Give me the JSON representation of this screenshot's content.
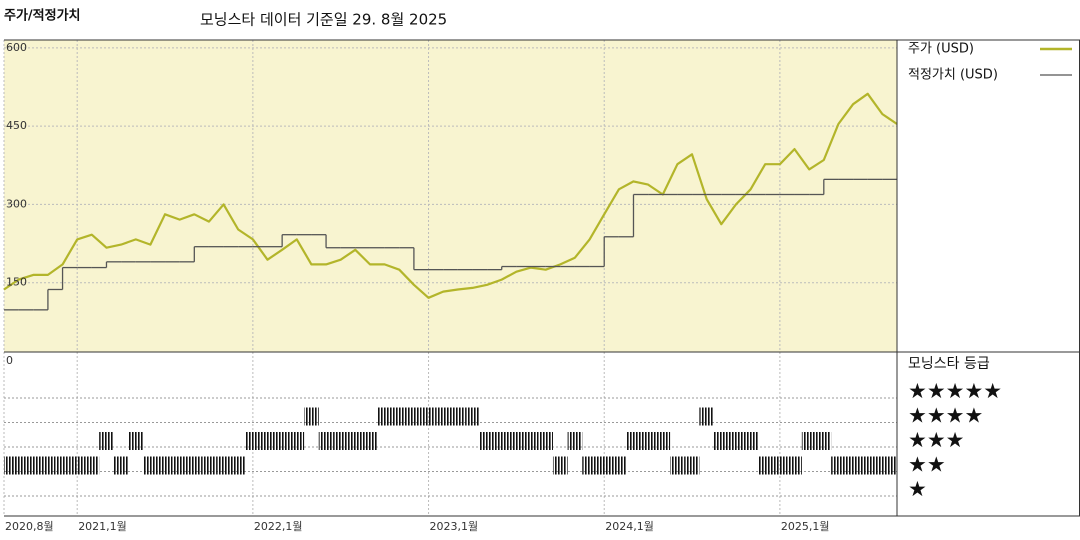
{
  "chart_data": {
    "type": "line",
    "title": "주가/적정가치",
    "subtitle": "모닝스타 데이터 기준일 29. 8월 2025",
    "x": [
      "2020-08",
      "2020-09",
      "2020-10",
      "2020-11",
      "2020-12",
      "2021-01",
      "2021-02",
      "2021-03",
      "2021-04",
      "2021-05",
      "2021-06",
      "2021-07",
      "2021-08",
      "2021-09",
      "2021-10",
      "2021-11",
      "2021-12",
      "2022-01",
      "2022-02",
      "2022-03",
      "2022-04",
      "2022-05",
      "2022-06",
      "2022-07",
      "2022-08",
      "2022-09",
      "2022-10",
      "2022-11",
      "2022-12",
      "2023-01",
      "2023-02",
      "2023-03",
      "2023-04",
      "2023-05",
      "2023-06",
      "2023-07",
      "2023-08",
      "2023-09",
      "2023-10",
      "2023-11",
      "2023-12",
      "2024-01",
      "2024-02",
      "2024-03",
      "2024-04",
      "2024-05",
      "2024-06",
      "2024-07",
      "2024-08",
      "2024-09",
      "2024-10",
      "2024-11",
      "2024-12",
      "2025-01",
      "2025-02",
      "2025-03",
      "2025-04",
      "2025-05",
      "2025-06",
      "2025-07",
      "2025-08",
      "2025-09"
    ],
    "series": [
      {
        "name": "주가 (USD)",
        "color": "#b3b52a",
        "values": [
          137,
          156,
          165,
          165,
          185,
          233,
          242,
          217,
          223,
          233,
          223,
          281,
          271,
          281,
          267,
          300,
          252,
          233,
          194,
          213,
          233,
          185,
          185,
          194,
          213,
          185,
          185,
          175,
          146,
          121,
          133,
          137,
          140,
          146,
          156,
          171,
          179,
          175,
          185,
          198,
          233,
          281,
          329,
          344,
          338,
          319,
          377,
          396,
          310,
          262,
          300,
          329,
          377,
          377,
          406,
          367,
          385,
          454,
          492,
          512,
          473,
          454
        ]
      },
      {
        "name": "적정가치 (USD)",
        "color": "#555555",
        "step": true,
        "values": [
          98,
          98,
          98,
          137,
          179,
          179,
          179,
          190,
          190,
          190,
          190,
          190,
          190,
          219,
          219,
          219,
          219,
          219,
          219,
          242,
          242,
          242,
          217,
          217,
          217,
          217,
          217,
          217,
          175,
          175,
          175,
          175,
          175,
          175,
          181,
          181,
          181,
          181,
          181,
          181,
          181,
          238,
          238,
          319,
          319,
          319,
          319,
          319,
          319,
          319,
          319,
          319,
          319,
          319,
          319,
          319,
          348,
          348,
          348,
          348,
          348,
          348
        ]
      }
    ],
    "rating_title": "모닝스타 등급",
    "rating_labels": [
      "★★★★★",
      "★★★★",
      "★★★",
      "★★",
      "★"
    ],
    "ratings": [
      2,
      2,
      2,
      2,
      2,
      2,
      2,
      3,
      2,
      3,
      2,
      2,
      2,
      2,
      2,
      2,
      2,
      3,
      3,
      3,
      3,
      4,
      3,
      3,
      3,
      3,
      4,
      4,
      4,
      4,
      4,
      4,
      4,
      3,
      3,
      3,
      3,
      3,
      2,
      3,
      2,
      2,
      2,
      3,
      3,
      3,
      2,
      2,
      4,
      3,
      3,
      3,
      2,
      2,
      2,
      3,
      3,
      2,
      2,
      2,
      2,
      2
    ],
    "xlim": [
      "2020-08",
      "2025-09"
    ],
    "xticks": [
      {
        "value": "2020-08",
        "label": "2020,8월"
      },
      {
        "value": "2021-01",
        "label": "2021,1월"
      },
      {
        "value": "2022-01",
        "label": "2022,1월"
      },
      {
        "value": "2023-01",
        "label": "2023,1월"
      },
      {
        "value": "2024-01",
        "label": "2024,1월"
      },
      {
        "value": "2025-01",
        "label": "2025,1월"
      }
    ],
    "ylim": [
      0,
      615
    ],
    "yticks": [
      0,
      150,
      300,
      450,
      600
    ],
    "grid": true
  }
}
